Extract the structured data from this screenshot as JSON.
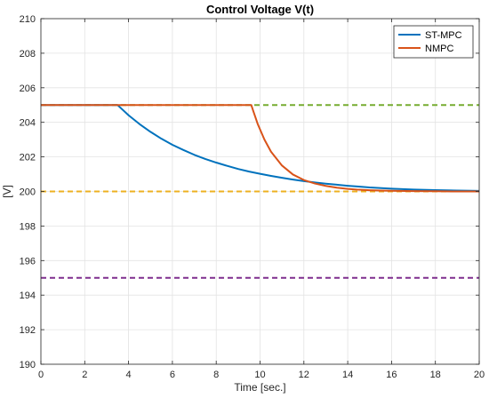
{
  "chart_data": {
    "type": "line",
    "title": "Control Voltage V(t)",
    "xlabel": "Time [sec.]",
    "ylabel": "[V]",
    "xlim": [
      0,
      20
    ],
    "ylim": [
      190,
      210
    ],
    "xticks": [
      0,
      2,
      4,
      6,
      8,
      10,
      12,
      14,
      16,
      18,
      20
    ],
    "yticks": [
      190,
      192,
      194,
      196,
      198,
      200,
      202,
      204,
      206,
      208,
      210
    ],
    "grid": true,
    "legend_position": "top-right",
    "series": [
      {
        "name": "ST-MPC",
        "color": "#0072bd",
        "style": "solid",
        "x": [
          0,
          3.5,
          3.6,
          4,
          4.5,
          5,
          5.5,
          6,
          6.5,
          7,
          7.5,
          8,
          8.5,
          9,
          9.5,
          10,
          10.5,
          11,
          11.5,
          12,
          12.5,
          13,
          13.5,
          14,
          14.5,
          15,
          16,
          17,
          18,
          19,
          20
        ],
        "values": [
          205,
          205,
          204.88,
          204.41,
          203.9,
          203.45,
          203.05,
          202.7,
          202.4,
          202.12,
          201.88,
          201.67,
          201.48,
          201.3,
          201.15,
          201.02,
          200.9,
          200.79,
          200.69,
          200.6,
          200.52,
          200.45,
          200.39,
          200.33,
          200.28,
          200.23,
          200.16,
          200.11,
          200.08,
          200.05,
          200.03
        ]
      },
      {
        "name": "NMPC",
        "color": "#d95319",
        "style": "solid",
        "x": [
          0,
          9.6,
          9.7,
          9.9,
          10.2,
          10.5,
          11,
          11.5,
          12,
          12.5,
          13,
          13.5,
          14,
          14.5,
          15,
          15.5,
          16,
          17,
          18,
          19,
          20
        ],
        "values": [
          205,
          205,
          204.62,
          203.88,
          203,
          202.3,
          201.5,
          200.98,
          200.66,
          200.46,
          200.32,
          200.22,
          200.15,
          200.1,
          200.07,
          200.05,
          200.04,
          200.02,
          200.01,
          200,
          200
        ]
      },
      {
        "color": "#77ac30",
        "style": "dashed",
        "x": [
          0,
          20
        ],
        "values": [
          205,
          205
        ]
      },
      {
        "color": "#edb120",
        "style": "dashed",
        "x": [
          0,
          20
        ],
        "values": [
          200,
          200
        ]
      },
      {
        "color": "#7e2f8e",
        "style": "dashed",
        "x": [
          0,
          20
        ],
        "values": [
          195,
          195
        ]
      }
    ]
  }
}
